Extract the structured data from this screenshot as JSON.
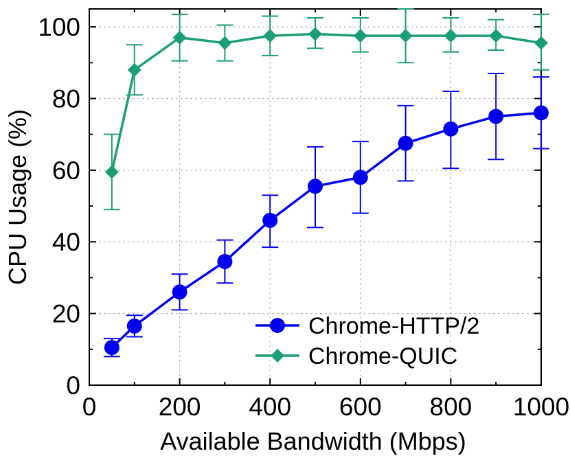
{
  "chart_data": {
    "type": "line",
    "xlabel": "Available Bandwidth (Mbps)",
    "ylabel": "CPU Usage (%)",
    "xlim": [
      0,
      1000
    ],
    "ylim": [
      0,
      105
    ],
    "xticks": [
      "0",
      "200",
      "400",
      "600",
      "800",
      "1000"
    ],
    "yticks": [
      "0",
      "20",
      "40",
      "60",
      "80",
      "100"
    ],
    "grid": true,
    "legend_position": "bottom-right",
    "x": [
      50,
      100,
      200,
      300,
      400,
      500,
      600,
      700,
      800,
      900,
      1000
    ],
    "series": [
      {
        "name": "Chrome-HTTP/2",
        "color": "#0000ee",
        "marker": "circle",
        "values": [
          10.5,
          16.5,
          26,
          34.5,
          46,
          55.5,
          58,
          67.5,
          71.5,
          75,
          76
        ],
        "error_low": [
          8,
          13.5,
          21,
          28.5,
          38.5,
          44,
          48,
          57,
          60.5,
          63,
          66
        ],
        "error_high": [
          13,
          19.5,
          31,
          40.5,
          53,
          66.5,
          68,
          78,
          82,
          87,
          86
        ]
      },
      {
        "name": "Chrome-QUIC",
        "color": "#1b9e77",
        "marker": "diamond",
        "values": [
          59.5,
          88,
          97,
          95.5,
          97.5,
          98,
          97.5,
          97.5,
          97.5,
          97.5,
          95.5
        ],
        "error_low": [
          49,
          81,
          90.5,
          90.5,
          92,
          94,
          93,
          90,
          93,
          93.5,
          88
        ],
        "error_high": [
          70,
          95,
          103.5,
          100.5,
          103,
          102.5,
          102.5,
          105,
          102.5,
          102,
          103.5
        ]
      }
    ]
  }
}
